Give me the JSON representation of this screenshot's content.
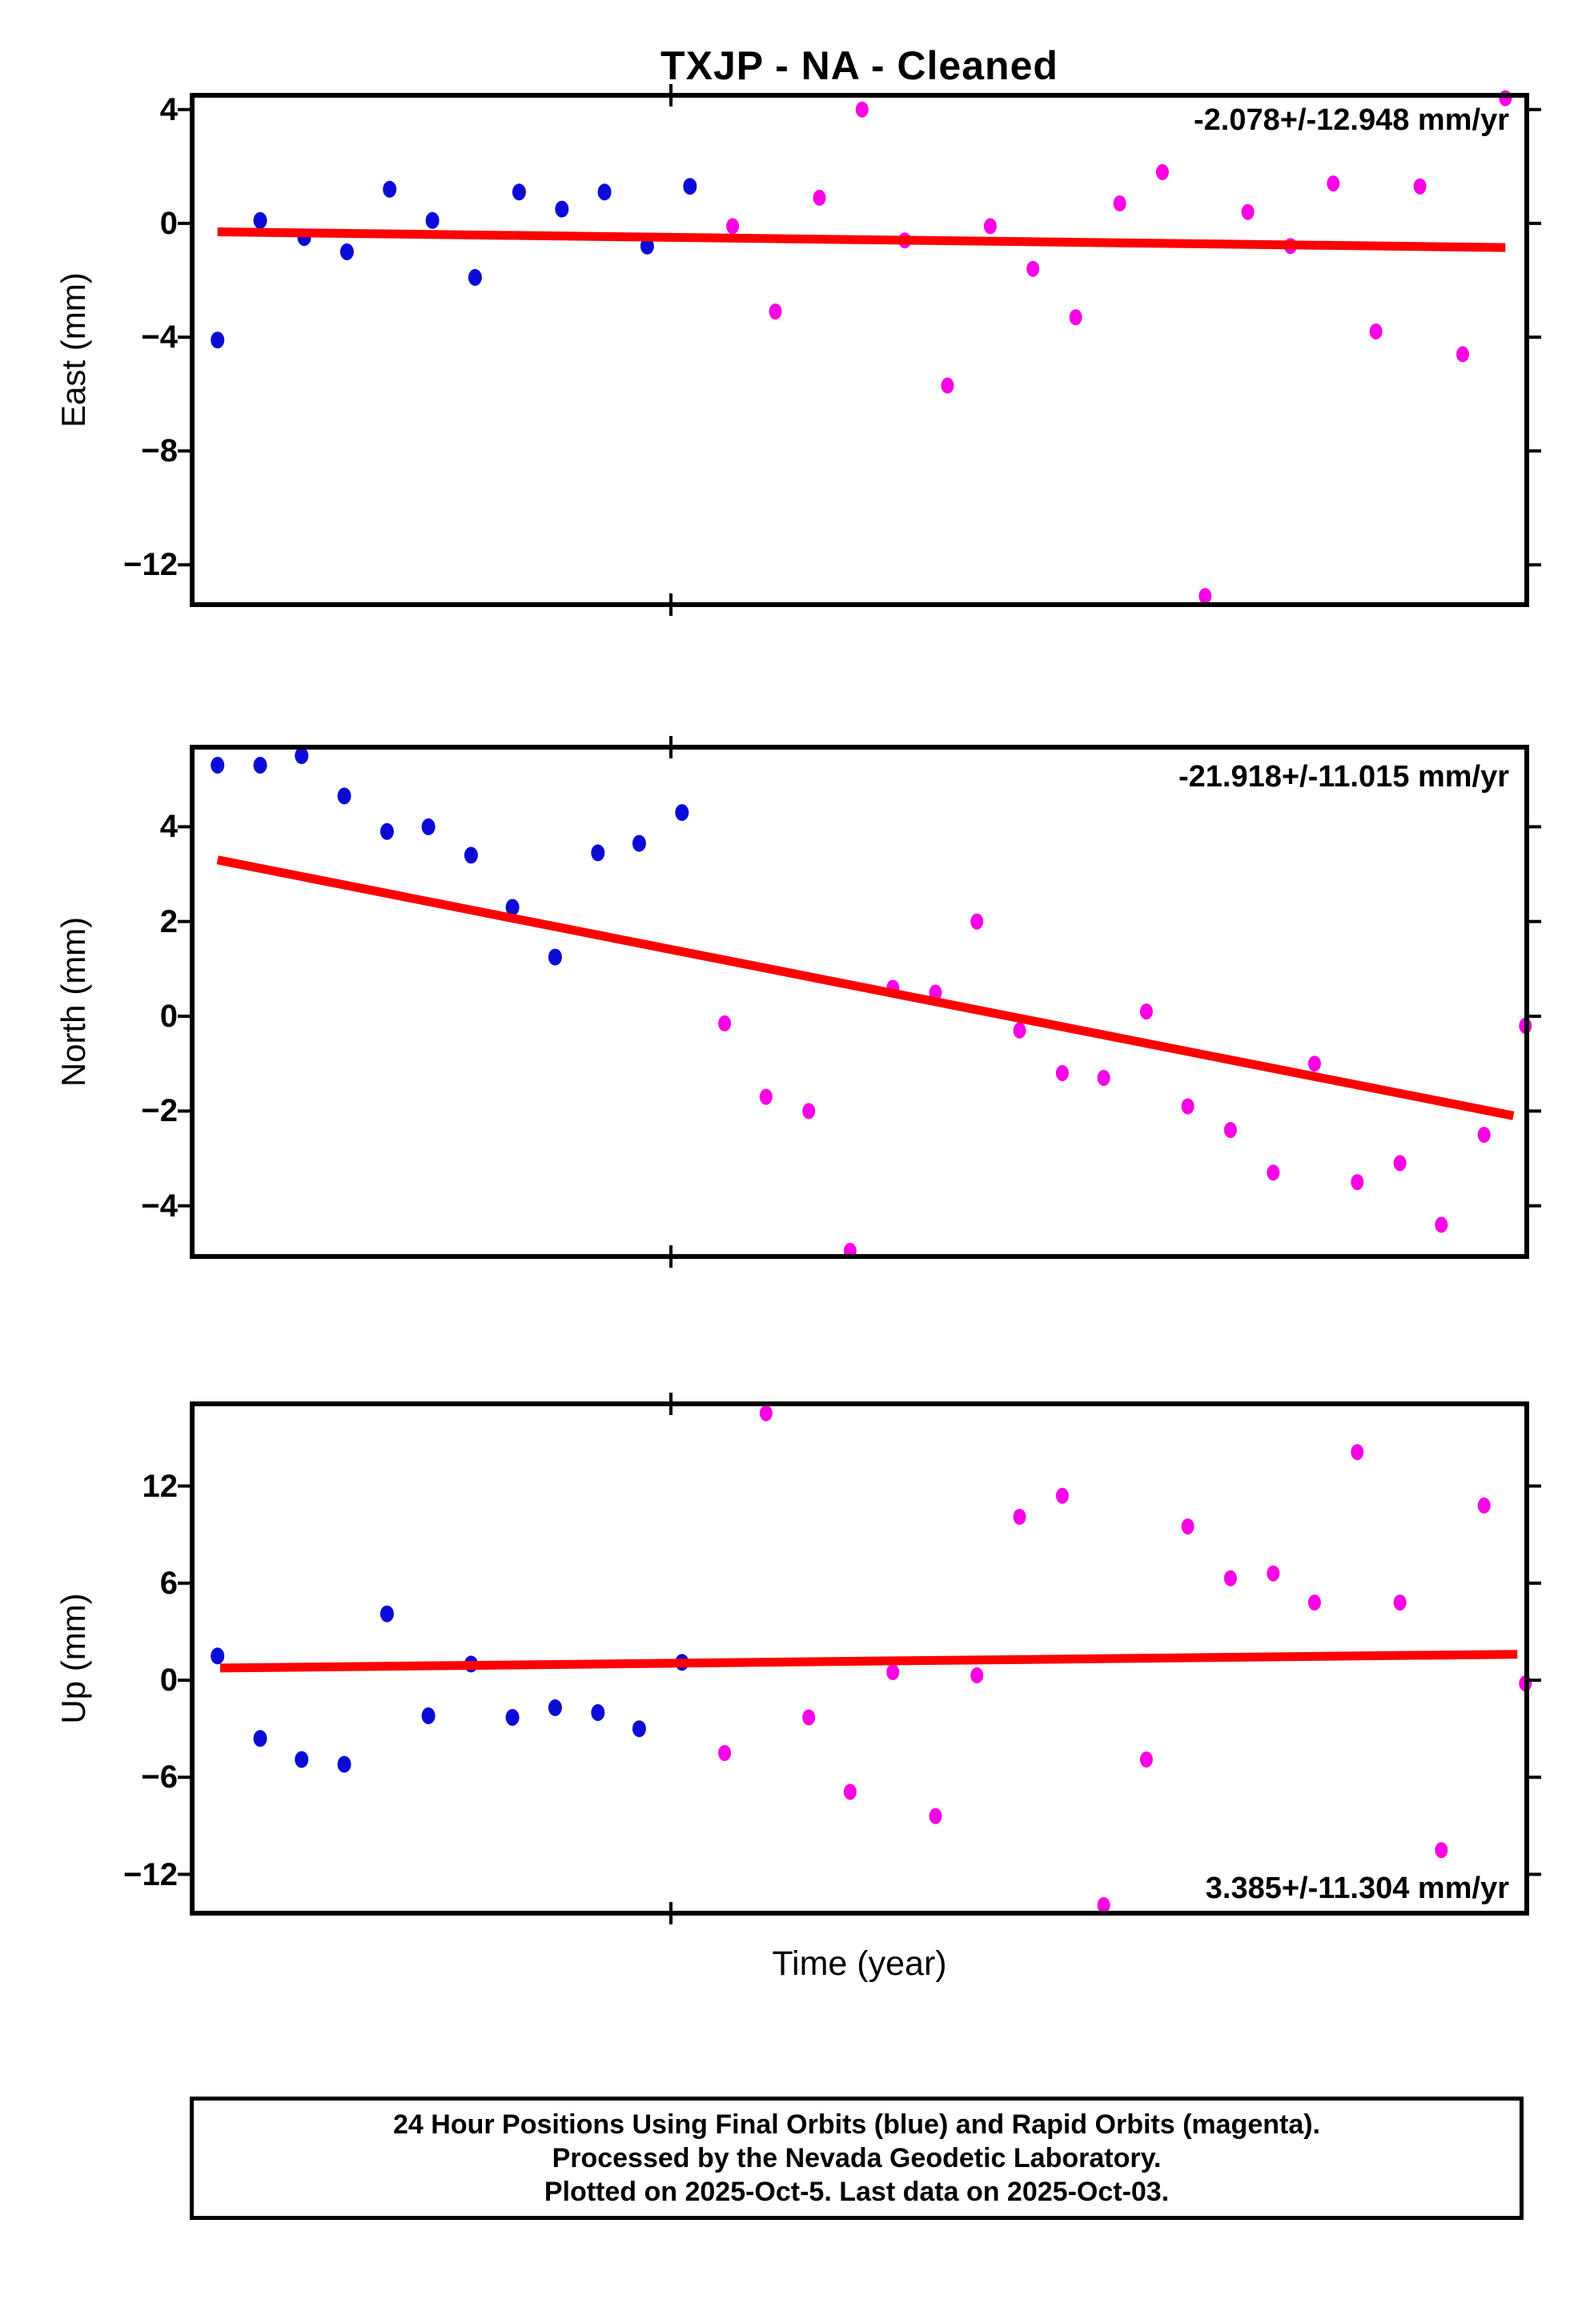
{
  "page": {
    "title": "TXJP  - NA - Cleaned",
    "xlabel": "Time (year)"
  },
  "colors": {
    "final_orbit_blue": "#0b0bd5",
    "rapid_orbit_magenta": "#fa00e4",
    "trend_red": "#ff0000",
    "axis_black": "#000000",
    "background": "#ffffff"
  },
  "caption": {
    "lines": [
      "24 Hour Positions Using Final Orbits (blue) and Rapid Orbits (magenta).",
      "Processed by the Nevada Geodetic Laboratory.",
      "Plotted on 2025-Oct-5. Last data on 2025-Oct-03."
    ]
  },
  "chart_data": [
    {
      "type": "scatter",
      "component": "East",
      "ylabel": "East (mm)",
      "yticks": [
        4,
        0,
        -4,
        -8,
        -12
      ],
      "ylim": [
        4.5,
        -13.4
      ],
      "xtick_fractions": [
        0.3587
      ],
      "grid": false,
      "trend": {
        "label": "-2.078+/-12.948 mm/yr",
        "label_position": "top-right",
        "x": [
          0.019,
          0.984
        ],
        "y": [
          -0.3,
          -0.85
        ]
      },
      "series": [
        {
          "name": "Final Orbits (blue)",
          "color_key": "final_orbit_blue",
          "points": [
            [
              0.019,
              -4.1
            ],
            [
              0.051,
              0.1
            ],
            [
              0.084,
              -0.5
            ],
            [
              0.116,
              -1.0
            ],
            [
              0.148,
              1.2
            ],
            [
              0.18,
              0.1
            ],
            [
              0.212,
              -1.9
            ],
            [
              0.245,
              1.1
            ],
            [
              0.277,
              0.5
            ],
            [
              0.309,
              1.1
            ],
            [
              0.341,
              -0.8
            ],
            [
              0.373,
              1.3
            ]
          ]
        },
        {
          "name": "Rapid Orbits (magenta)",
          "color_key": "rapid_orbit_magenta",
          "points": [
            [
              0.405,
              -0.1
            ],
            [
              0.437,
              -3.1
            ],
            [
              0.47,
              0.9
            ],
            [
              0.502,
              4.0
            ],
            [
              0.534,
              -0.6
            ],
            [
              0.566,
              -5.7
            ],
            [
              0.598,
              -0.1
            ],
            [
              0.63,
              -1.6
            ],
            [
              0.662,
              -3.3
            ],
            [
              0.695,
              0.7
            ],
            [
              0.727,
              1.8
            ],
            [
              0.759,
              -13.1
            ],
            [
              0.791,
              0.4
            ],
            [
              0.823,
              -0.8
            ],
            [
              0.855,
              1.4
            ],
            [
              0.887,
              -3.8
            ],
            [
              0.92,
              1.3
            ],
            [
              0.952,
              -4.6
            ],
            [
              0.984,
              4.4
            ]
          ]
        }
      ]
    },
    {
      "type": "scatter",
      "component": "North",
      "ylabel": "North (mm)",
      "yticks": [
        4,
        2,
        0,
        -2,
        -4
      ],
      "ylim": [
        5.68,
        -5.07
      ],
      "xtick_fractions": [
        0.3587
      ],
      "grid": false,
      "trend": {
        "label": "-21.918+/-11.015 mm/yr",
        "label_position": "top-right",
        "x": [
          0.019,
          0.99
        ],
        "y": [
          3.3,
          -2.1
        ]
      },
      "series": [
        {
          "name": "Final Orbits (blue)",
          "color_key": "final_orbit_blue",
          "points": [
            [
              0.019,
              5.3
            ],
            [
              0.051,
              5.3
            ],
            [
              0.082,
              5.5
            ],
            [
              0.114,
              4.65
            ],
            [
              0.146,
              3.9
            ],
            [
              0.177,
              4.0
            ],
            [
              0.209,
              3.4
            ],
            [
              0.24,
              2.3
            ],
            [
              0.272,
              1.25
            ],
            [
              0.304,
              3.45
            ],
            [
              0.335,
              3.65
            ],
            [
              0.367,
              4.3
            ]
          ]
        },
        {
          "name": "Rapid Orbits (magenta)",
          "color_key": "rapid_orbit_magenta",
          "points": [
            [
              0.399,
              -0.15
            ],
            [
              0.43,
              -1.7
            ],
            [
              0.462,
              -2.0
            ],
            [
              0.493,
              -4.95
            ],
            [
              0.525,
              0.6
            ],
            [
              0.557,
              0.5
            ],
            [
              0.588,
              2.0
            ],
            [
              0.62,
              -0.3
            ],
            [
              0.652,
              -1.2
            ],
            [
              0.683,
              -1.3
            ],
            [
              0.715,
              0.1
            ],
            [
              0.746,
              -1.9
            ],
            [
              0.778,
              -2.4
            ],
            [
              0.81,
              -3.3
            ],
            [
              0.841,
              -1.0
            ],
            [
              0.873,
              -3.5
            ],
            [
              0.905,
              -3.1
            ],
            [
              0.936,
              -4.4
            ],
            [
              0.968,
              -2.5
            ],
            [
              0.999,
              -0.2
            ]
          ]
        }
      ]
    },
    {
      "type": "scatter",
      "component": "Up",
      "ylabel": "Up (mm)",
      "yticks": [
        12,
        6,
        0,
        -6,
        -12
      ],
      "ylim": [
        17.08,
        -14.4
      ],
      "xtick_fractions": [
        0.3587
      ],
      "grid": false,
      "trend": {
        "label": "3.385+/-11.304 mm/yr",
        "label_position": "bottom-right",
        "x": [
          0.021,
          0.993
        ],
        "y": [
          0.75,
          1.6
        ]
      },
      "series": [
        {
          "name": "Final Orbits (blue)",
          "color_key": "final_orbit_blue",
          "points": [
            [
              0.019,
              1.5
            ],
            [
              0.051,
              -3.6
            ],
            [
              0.082,
              -4.9
            ],
            [
              0.114,
              -5.2
            ],
            [
              0.146,
              4.1
            ],
            [
              0.177,
              -2.2
            ],
            [
              0.209,
              1.0
            ],
            [
              0.24,
              -2.3
            ],
            [
              0.272,
              -1.7
            ],
            [
              0.304,
              -2.0
            ],
            [
              0.335,
              -3.0
            ],
            [
              0.367,
              1.1
            ]
          ]
        },
        {
          "name": "Rapid Orbits (magenta)",
          "color_key": "rapid_orbit_magenta",
          "points": [
            [
              0.399,
              -4.5
            ],
            [
              0.43,
              16.5
            ],
            [
              0.462,
              -2.3
            ],
            [
              0.493,
              -6.9
            ],
            [
              0.525,
              0.5
            ],
            [
              0.557,
              -8.4
            ],
            [
              0.588,
              0.3
            ],
            [
              0.62,
              10.1
            ],
            [
              0.652,
              11.4
            ],
            [
              0.683,
              -13.9
            ],
            [
              0.715,
              -4.9
            ],
            [
              0.746,
              9.5
            ],
            [
              0.778,
              6.3
            ],
            [
              0.81,
              6.6
            ],
            [
              0.841,
              4.8
            ],
            [
              0.873,
              14.1
            ],
            [
              0.905,
              4.8
            ],
            [
              0.936,
              -10.5
            ],
            [
              0.968,
              10.8
            ],
            [
              0.999,
              -0.2
            ]
          ]
        }
      ]
    }
  ]
}
